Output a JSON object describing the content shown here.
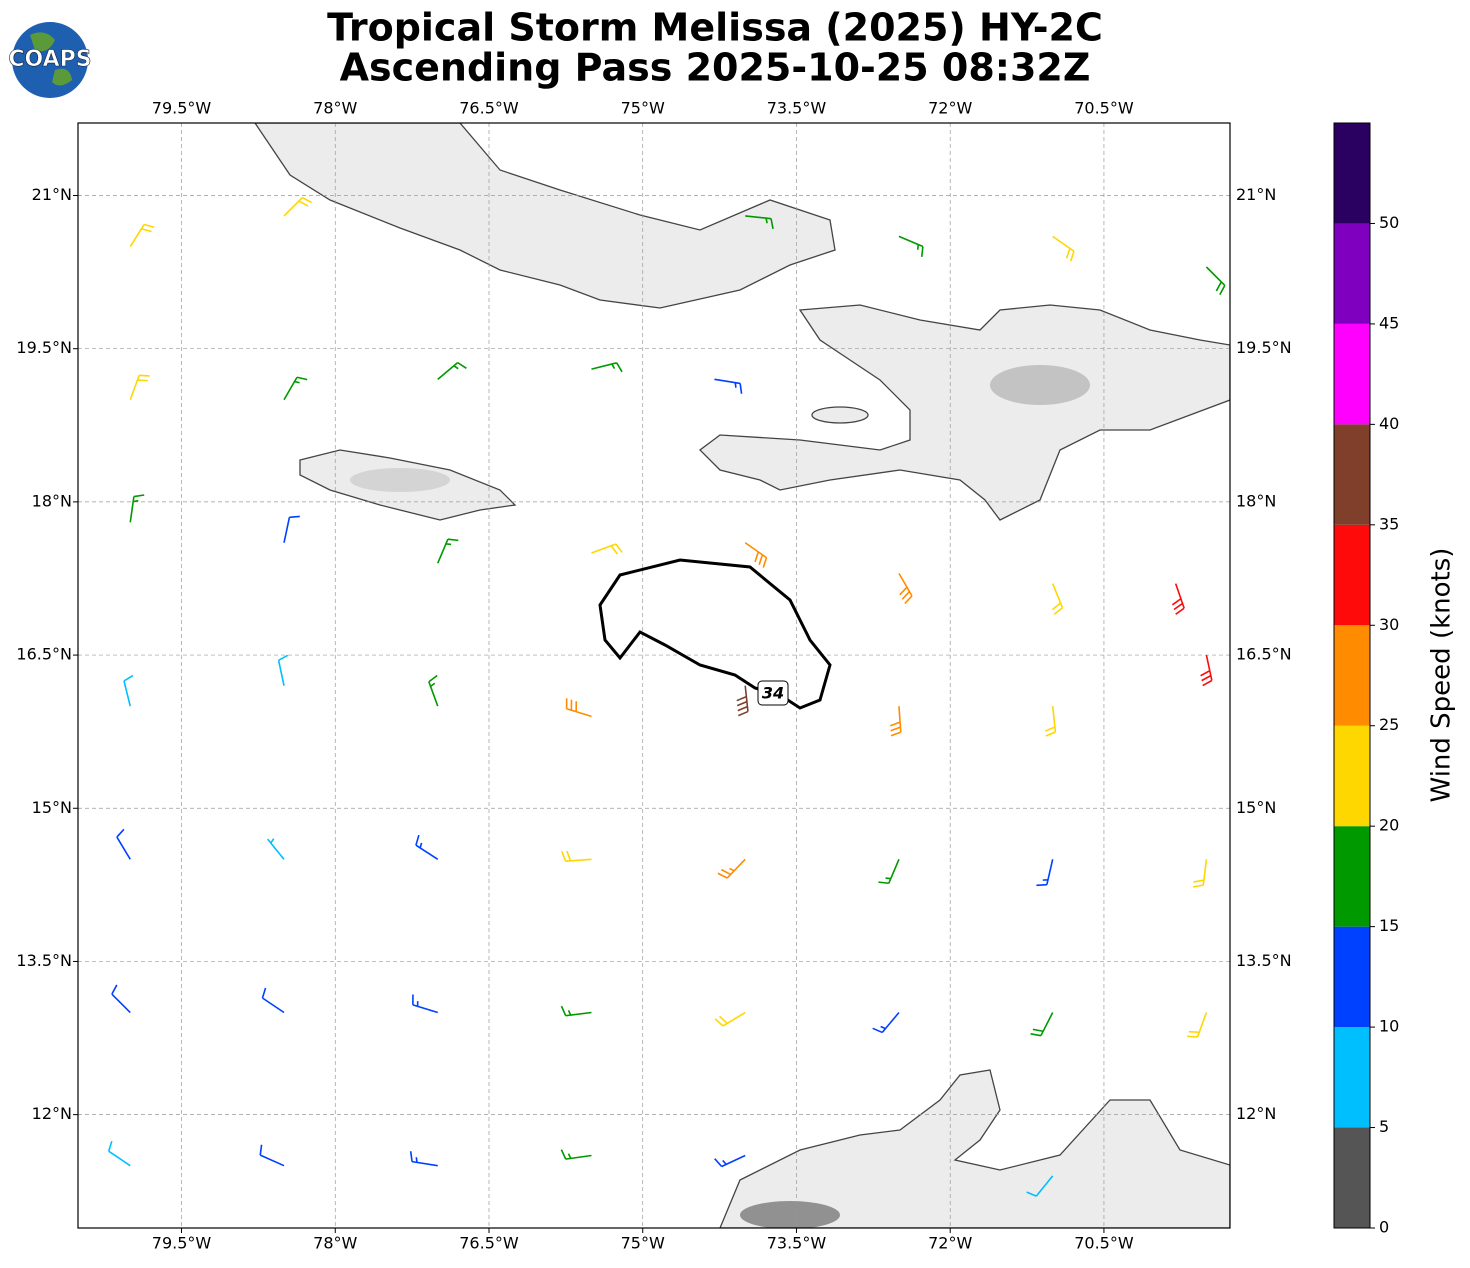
{
  "chart_data": {
    "type": "barbs",
    "title": [
      "Tropical Storm Melissa (2025) HY-2C",
      "Ascending Pass 2025-10-25 08:32Z"
    ],
    "logo_text": "COAPS",
    "xlim": [
      -80.51,
      -69.27
    ],
    "ylim": [
      10.89,
      21.71
    ],
    "xticks": [
      {
        "value": -79.5,
        "label": "79.5°W"
      },
      {
        "value": -78,
        "label": "78°W"
      },
      {
        "value": -76.5,
        "label": "76.5°W"
      },
      {
        "value": -75,
        "label": "75°W"
      },
      {
        "value": -73.5,
        "label": "73.5°W"
      },
      {
        "value": -72,
        "label": "72°W"
      },
      {
        "value": -70.5,
        "label": "70.5°W"
      }
    ],
    "yticks": [
      {
        "value": 12,
        "label": "12°N"
      },
      {
        "value": 13.5,
        "label": "13.5°N"
      },
      {
        "value": 15,
        "label": "15°N"
      },
      {
        "value": 16.5,
        "label": "16.5°N"
      },
      {
        "value": 18,
        "label": "18°N"
      },
      {
        "value": 19.5,
        "label": "19.5°N"
      },
      {
        "value": 21,
        "label": "21°N"
      }
    ],
    "grid": true,
    "contour_label": "34",
    "barbs": {
      "lon": [
        -80,
        -78.5,
        -74,
        -72.5,
        -71,
        -69.5,
        -80,
        -78.5,
        -77,
        -75.5,
        -74.3,
        -80,
        -78.5,
        -77,
        -75.5,
        -74,
        -72.5,
        -71,
        -69.8,
        -80,
        -78.5,
        -77,
        -75.5,
        -74,
        -72.5,
        -71,
        -69.5,
        -80,
        -78.5,
        -77,
        -75.5,
        -74,
        -72.5,
        -71,
        -69.5,
        -80,
        -78.5,
        -77,
        -75.5,
        -74,
        -72.5,
        -71,
        -69.5,
        -80,
        -78.5,
        -77,
        -75.5,
        -74,
        -71
      ],
      "lat": [
        20.5,
        20.8,
        20.8,
        20.6,
        20.6,
        20.3,
        19,
        19,
        19.2,
        19.3,
        19.2,
        17.8,
        17.6,
        17.4,
        17.5,
        17.6,
        17.3,
        17.2,
        17.2,
        16,
        16.2,
        16,
        15.9,
        16.2,
        16,
        16,
        16.5,
        14.5,
        14.5,
        14.5,
        14.5,
        14.5,
        14.5,
        14.5,
        14.5,
        13,
        13,
        13,
        13,
        13,
        13,
        13,
        13,
        11.5,
        11.5,
        11.5,
        11.6,
        11.6,
        11.4
      ],
      "speed": [
        22,
        22,
        17,
        17,
        22,
        18,
        22,
        17,
        17,
        17,
        13,
        17,
        12,
        17,
        22,
        28,
        28,
        22,
        32,
        8,
        8,
        17,
        28,
        38,
        28,
        22,
        32,
        12,
        7,
        13,
        22,
        27,
        17,
        14,
        22,
        12,
        12,
        13,
        17,
        22,
        13,
        18,
        22,
        8,
        12,
        13,
        17,
        13,
        8
      ],
      "direction": [
        32,
        45,
        96,
        113,
        125,
        135,
        20,
        30,
        50,
        76,
        99,
        8,
        12,
        23,
        70,
        125,
        150,
        158,
        161,
        346,
        348,
        340,
        287,
        174,
        176,
        174,
        168,
        329,
        321,
        303,
        266,
        224,
        203,
        193,
        187,
        315,
        304,
        287,
        263,
        239,
        220,
        207,
        200,
        304,
        294,
        279,
        262,
        245,
        219
      ]
    },
    "colorbar": {
      "label": "Wind Speed (knots)",
      "lim": [
        0,
        55
      ],
      "ticks": [
        0,
        5,
        10,
        15,
        20,
        25,
        30,
        35,
        40,
        45,
        50
      ],
      "colors": [
        "#555555",
        "#00bfff",
        "#0040ff",
        "#009900",
        "#ffd700",
        "#ff8c00",
        "#ff0a0a",
        "#7f3f2a",
        "#ff00ff",
        "#8000c0",
        "#2a0060"
      ]
    }
  }
}
